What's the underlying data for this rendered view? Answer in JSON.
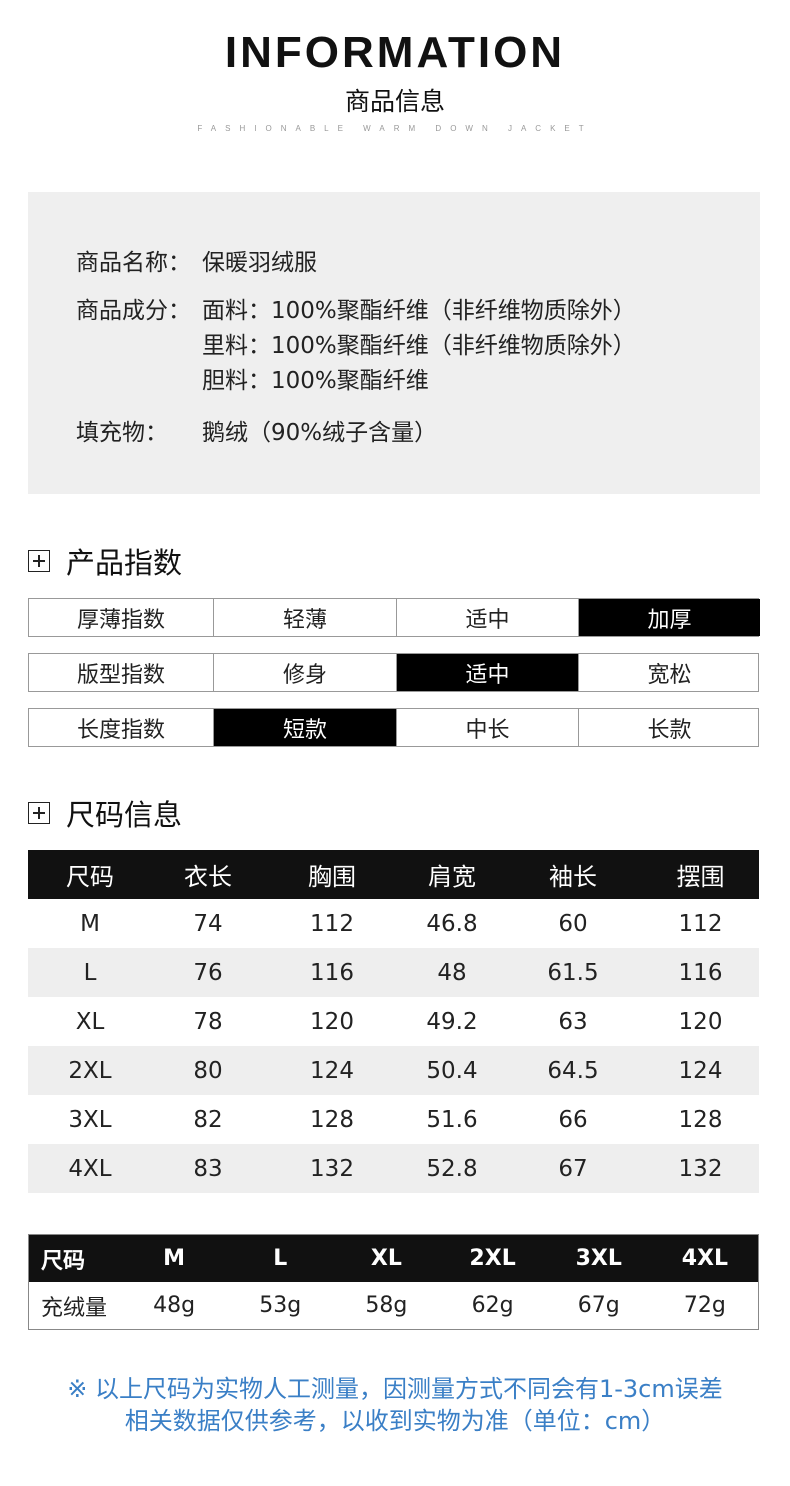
{
  "header": {
    "title": "INFORMATION",
    "subtitle": "商品信息",
    "tagline": "FASHIONABLE WARM DOWN JACKET"
  },
  "info": {
    "name_label": "商品名称：",
    "name_value": "保暖羽绒服",
    "composition_label": "商品成分：",
    "composition": [
      "面料：100%聚酯纤维（非纤维物质除外）",
      "里料：100%聚酯纤维（非纤维物质除外）",
      "胆料：100%聚酯纤维"
    ],
    "filling_label": "填充物：",
    "filling_value": "鹅绒（90%绒子含量）"
  },
  "index_section": {
    "title": "产品指数",
    "icon": "plus-square-icon",
    "rows": [
      {
        "label": "厚薄指数",
        "options": [
          "轻薄",
          "适中",
          "加厚"
        ],
        "selected": 2
      },
      {
        "label": "版型指数",
        "options": [
          "修身",
          "适中",
          "宽松"
        ],
        "selected": 1
      },
      {
        "label": "长度指数",
        "options": [
          "短款",
          "中长",
          "长款"
        ],
        "selected": 0
      }
    ]
  },
  "size_section": {
    "title": "尺码信息",
    "icon": "plus-square-icon",
    "headers": [
      "尺码",
      "衣长",
      "胸围",
      "肩宽",
      "袖长",
      "摆围"
    ],
    "rows": [
      [
        "M",
        "74",
        "112",
        "46.8",
        "60",
        "112"
      ],
      [
        "L",
        "76",
        "116",
        "48",
        "61.5",
        "116"
      ],
      [
        "XL",
        "78",
        "120",
        "49.2",
        "63",
        "120"
      ],
      [
        "2XL",
        "80",
        "124",
        "50.4",
        "64.5",
        "124"
      ],
      [
        "3XL",
        "82",
        "128",
        "51.6",
        "66",
        "128"
      ],
      [
        "4XL",
        "83",
        "132",
        "52.8",
        "67",
        "132"
      ]
    ]
  },
  "fill_table": {
    "headers": [
      "尺码",
      "M",
      "L",
      "XL",
      "2XL",
      "3XL",
      "4XL"
    ],
    "row": [
      "充绒量",
      "48g",
      "53g",
      "58g",
      "62g",
      "67g",
      "72g"
    ]
  },
  "note": {
    "line1": "※ 以上尺码为实物人工测量，因测量方式不同会有1-3cm误差",
    "line2": "相关数据仅供参考，以收到实物为准（单位：cm）",
    "color": "#3a7fc6"
  }
}
